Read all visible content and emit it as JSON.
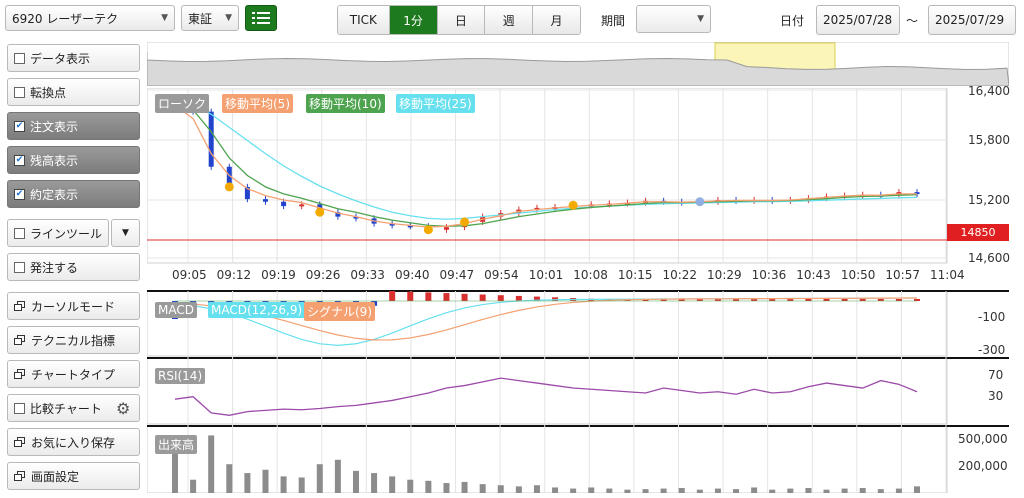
{
  "header": {
    "symbol": "6920 レーザーテク",
    "market": "東証",
    "periods": [
      {
        "label": "TICK",
        "active": false
      },
      {
        "label": "1分",
        "active": true
      },
      {
        "label": "日",
        "active": false
      },
      {
        "label": "週",
        "active": false
      },
      {
        "label": "月",
        "active": false
      }
    ],
    "range_label": "期間",
    "range_value": "",
    "date_label": "日付",
    "date_from": "2025/07/28",
    "tilde": "〜",
    "date_to": "2025/07/29"
  },
  "sidebar": {
    "items": [
      {
        "label": "データ表示",
        "kind": "checkbox",
        "checked": false
      },
      {
        "label": "転換点",
        "kind": "checkbox",
        "checked": false
      },
      {
        "label": "注文表示",
        "kind": "checkbox",
        "checked": true
      },
      {
        "label": "残高表示",
        "kind": "checkbox",
        "checked": true
      },
      {
        "label": "約定表示",
        "kind": "checkbox",
        "checked": true
      },
      {
        "label": "ラインツール",
        "kind": "checkbox",
        "checked": false
      },
      {
        "label": "発注する",
        "kind": "checkbox",
        "checked": false
      },
      {
        "label": "カーソルモード",
        "kind": "window"
      },
      {
        "label": "テクニカル指標",
        "kind": "window"
      },
      {
        "label": "チャートタイプ",
        "kind": "window"
      },
      {
        "label": "比較チャート",
        "kind": "checkbox",
        "checked": false
      },
      {
        "label": "お気に入り保存",
        "kind": "window"
      },
      {
        "label": "画面設定",
        "kind": "window"
      }
    ]
  },
  "legend": {
    "candle": "ローソク",
    "ma5": "移動平均(5)",
    "ma10": "移動平均(10)",
    "ma25": "移動平均(25)"
  },
  "colors": {
    "ma5": "#f4a070",
    "ma10": "#4ea34e",
    "ma25": "#66e0ee",
    "up": "#d93030",
    "down": "#2244cc",
    "accent": "#1e7a1e",
    "price_line": "#e03030"
  },
  "price_axis": {
    "ticks": [
      "16,400",
      "15,800",
      "15,200",
      "14,600"
    ]
  },
  "price_marker": "14850",
  "time_axis": [
    "09:05",
    "09:12",
    "09:19",
    "09:26",
    "09:33",
    "09:40",
    "09:47",
    "09:54",
    "10:01",
    "10:08",
    "10:15",
    "10:22",
    "10:29",
    "10:36",
    "10:43",
    "10:50",
    "10:57",
    "11:04"
  ],
  "macd": {
    "label": "MACD",
    "signal_label": "MACD(12,26,9)",
    "hist_label": "シグナル(9)",
    "ticks": [
      "-100",
      "-300"
    ]
  },
  "rsi": {
    "label": "RSI(14)",
    "ticks": [
      "70",
      "30"
    ]
  },
  "volume": {
    "label": "出来高",
    "ticks": [
      "500,000",
      "200,000"
    ]
  },
  "chart_data": {
    "type": "line",
    "series": [
      {
        "name": "ローソク",
        "values": [
          16200,
          16180,
          15550,
          15320,
          15180,
          15150,
          15100,
          15120,
          15030,
          14980,
          14960,
          14900,
          14880,
          14870,
          14830,
          14860,
          14920,
          14980,
          15020,
          15060,
          15080,
          15090,
          15110,
          15120,
          15130,
          15140,
          15160,
          15150,
          15140,
          15150,
          15170,
          15160,
          15170,
          15160,
          15170,
          15190,
          15210,
          15220,
          15230,
          15220,
          15260,
          15240
        ]
      },
      {
        "name": "移動平均(5)",
        "values": [
          16250,
          16100,
          15700,
          15450,
          15300,
          15220,
          15170,
          15140,
          15080,
          15020,
          14980,
          14930,
          14900,
          14880,
          14860,
          14870,
          14900,
          14950,
          14990,
          15040,
          15060,
          15080,
          15095,
          15110,
          15120,
          15135,
          15150,
          15150,
          15145,
          15150,
          15160,
          15165,
          15165,
          15165,
          15170,
          15185,
          15200,
          15215,
          15225,
          15225,
          15240,
          15240
        ]
      },
      {
        "name": "移動平均(10)",
        "values": [
          16280,
          16200,
          15950,
          15650,
          15450,
          15320,
          15240,
          15190,
          15130,
          15070,
          15030,
          14980,
          14940,
          14910,
          14880,
          14870,
          14875,
          14900,
          14940,
          14980,
          15010,
          15040,
          15065,
          15085,
          15100,
          15115,
          15130,
          15140,
          15140,
          15145,
          15150,
          15155,
          15160,
          15160,
          15165,
          15175,
          15185,
          15200,
          15210,
          15215,
          15225,
          15230
        ]
      },
      {
        "name": "移動平均(25)",
        "values": [
          16300,
          16250,
          16150,
          16000,
          15850,
          15700,
          15560,
          15440,
          15330,
          15240,
          15160,
          15090,
          15030,
          14990,
          14960,
          14950,
          14960,
          14980,
          15000,
          15020,
          15040,
          15060,
          15075,
          15090,
          15100,
          15110,
          15120,
          15128,
          15132,
          15136,
          15140,
          15145,
          15150,
          15152,
          15155,
          15160,
          15168,
          15175,
          15182,
          15188,
          15195,
          15200
        ]
      }
    ],
    "ylim": [
      14450,
      16450
    ],
    "rsi_values": [
      40,
      44,
      18,
      14,
      20,
      22,
      24,
      23,
      25,
      28,
      30,
      34,
      38,
      44,
      50,
      58,
      62,
      68,
      74,
      70,
      66,
      62,
      58,
      56,
      54,
      52,
      50,
      58,
      54,
      50,
      52,
      48,
      56,
      50,
      52,
      60,
      66,
      62,
      58,
      70,
      64,
      52
    ],
    "volume_values": [
      380000,
      120000,
      520000,
      260000,
      180000,
      210000,
      150000,
      140000,
      260000,
      300000,
      200000,
      180000,
      150000,
      120000,
      110000,
      90000,
      100000,
      80000,
      70000,
      60000,
      70000,
      50000,
      40000,
      50000,
      40000,
      30000,
      35000,
      40000,
      45000,
      30000,
      40000,
      35000,
      50000,
      30000,
      40000,
      45000,
      30000,
      40000,
      45000,
      35000,
      40000,
      60000
    ]
  }
}
